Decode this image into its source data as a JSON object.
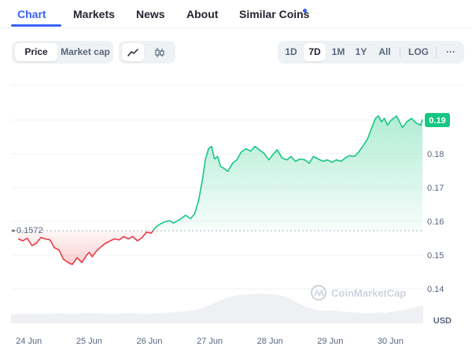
{
  "tabs": [
    {
      "label": "Chart",
      "active": true
    },
    {
      "label": "Markets",
      "active": false
    },
    {
      "label": "News",
      "active": false
    },
    {
      "label": "About",
      "active": false
    },
    {
      "label": "Similar Coins",
      "active": false,
      "has_dot": true
    }
  ],
  "controls": {
    "type_toggle": [
      {
        "label": "Price",
        "active": true
      },
      {
        "label": "Market cap",
        "active": false
      }
    ],
    "view_icons": [
      {
        "name": "line-chart-icon",
        "active": true
      },
      {
        "name": "candlestick-icon",
        "active": false
      }
    ],
    "ranges": [
      {
        "label": "1D",
        "active": false
      },
      {
        "label": "7D",
        "active": true
      },
      {
        "label": "1M",
        "active": false
      },
      {
        "label": "1Y",
        "active": false
      },
      {
        "label": "All",
        "active": false
      }
    ],
    "log_label": "LOG",
    "more_label": "···"
  },
  "colors": {
    "accent": "#3861fb",
    "up": "#16c784",
    "down": "#ea3943"
  },
  "chart_data": {
    "type": "line",
    "currency_label": "USD",
    "baseline_label": "0.1572",
    "baseline": 0.1572,
    "current_label": "0.19",
    "y_ticks": [
      "0.19",
      "0.18",
      "0.17",
      "0.16",
      "0.15",
      "0.14"
    ],
    "ylim": [
      0.1335,
      0.1965
    ],
    "x_ticks": [
      "24 Jun",
      "25 Jun",
      "26 Jun",
      "27 Jun",
      "28 Jun",
      "29 Jun",
      "30 Jun"
    ],
    "xlim": [
      -0.18,
      6.53
    ],
    "series": [
      {
        "x": [
          -0.18,
          -0.1,
          -0.03,
          0.05,
          0.12,
          0.2,
          0.27,
          0.35,
          0.42,
          0.5,
          0.57,
          0.65,
          0.72,
          0.8,
          0.88,
          0.95,
          1.0,
          1.05,
          1.12,
          1.2,
          1.27,
          1.35,
          1.42,
          1.5,
          1.57,
          1.65,
          1.72,
          1.8,
          1.88,
          1.95,
          2.03,
          2.1,
          2.18,
          2.25,
          2.33,
          2.4,
          2.5,
          2.6,
          2.68,
          2.75,
          2.82,
          2.88,
          2.93,
          2.98,
          3.03,
          3.08,
          3.13,
          3.18,
          3.23,
          3.3,
          3.38,
          3.45,
          3.52,
          3.6,
          3.68,
          3.75,
          3.82,
          3.9,
          3.98,
          4.05,
          4.12,
          4.2,
          4.28,
          4.35,
          4.42,
          4.5,
          4.58,
          4.65,
          4.72,
          4.8,
          4.88,
          4.95,
          5.03,
          5.1,
          5.18,
          5.25,
          5.32,
          5.4,
          5.47,
          5.55,
          5.62,
          5.7,
          5.75,
          5.8,
          5.85,
          5.9,
          5.95,
          6.0,
          6.05,
          6.1,
          6.15,
          6.2,
          6.27,
          6.35,
          6.42,
          6.5,
          6.53
        ],
        "y": [
          0.1548,
          0.1542,
          0.155,
          0.1528,
          0.1535,
          0.1552,
          0.1548,
          0.1545,
          0.1522,
          0.1515,
          0.1488,
          0.1478,
          0.1472,
          0.1492,
          0.1478,
          0.1498,
          0.1508,
          0.1495,
          0.1512,
          0.1525,
          0.1535,
          0.1542,
          0.1548,
          0.1545,
          0.1555,
          0.1548,
          0.1555,
          0.1542,
          0.1552,
          0.1568,
          0.1565,
          0.1582,
          0.1592,
          0.1598,
          0.1602,
          0.1595,
          0.1605,
          0.1618,
          0.1608,
          0.1622,
          0.1665,
          0.1725,
          0.1785,
          0.1815,
          0.1822,
          0.1785,
          0.1792,
          0.1762,
          0.1758,
          0.1748,
          0.1772,
          0.1782,
          0.1805,
          0.1815,
          0.1808,
          0.1822,
          0.1812,
          0.1802,
          0.1782,
          0.1798,
          0.1812,
          0.1788,
          0.1782,
          0.1792,
          0.1778,
          0.1785,
          0.1782,
          0.1772,
          0.1792,
          0.1785,
          0.1778,
          0.1782,
          0.1775,
          0.1782,
          0.1778,
          0.1788,
          0.1795,
          0.1792,
          0.1805,
          0.1825,
          0.1845,
          0.1882,
          0.1905,
          0.1912,
          0.1895,
          0.1905,
          0.1885,
          0.1898,
          0.1905,
          0.1912,
          0.1895,
          0.1878,
          0.1895,
          0.1905,
          0.1892,
          0.1885,
          0.1902
        ]
      }
    ],
    "volume_series": [
      0.28,
      0.3,
      0.29,
      0.31,
      0.3,
      0.32,
      0.31,
      0.3,
      0.33,
      0.32,
      0.31,
      0.3,
      0.32,
      0.33,
      0.31,
      0.3,
      0.32,
      0.34,
      0.36,
      0.38,
      0.42,
      0.5,
      0.62,
      0.75,
      0.85,
      0.9,
      0.92,
      0.95,
      0.93,
      0.9,
      0.85,
      0.7,
      0.55,
      0.45,
      0.4,
      0.42,
      0.38,
      0.35,
      0.33,
      0.32,
      0.34,
      0.33,
      0.38,
      0.42,
      0.5,
      0.58
    ],
    "watermark": "CoinMarketCap"
  }
}
